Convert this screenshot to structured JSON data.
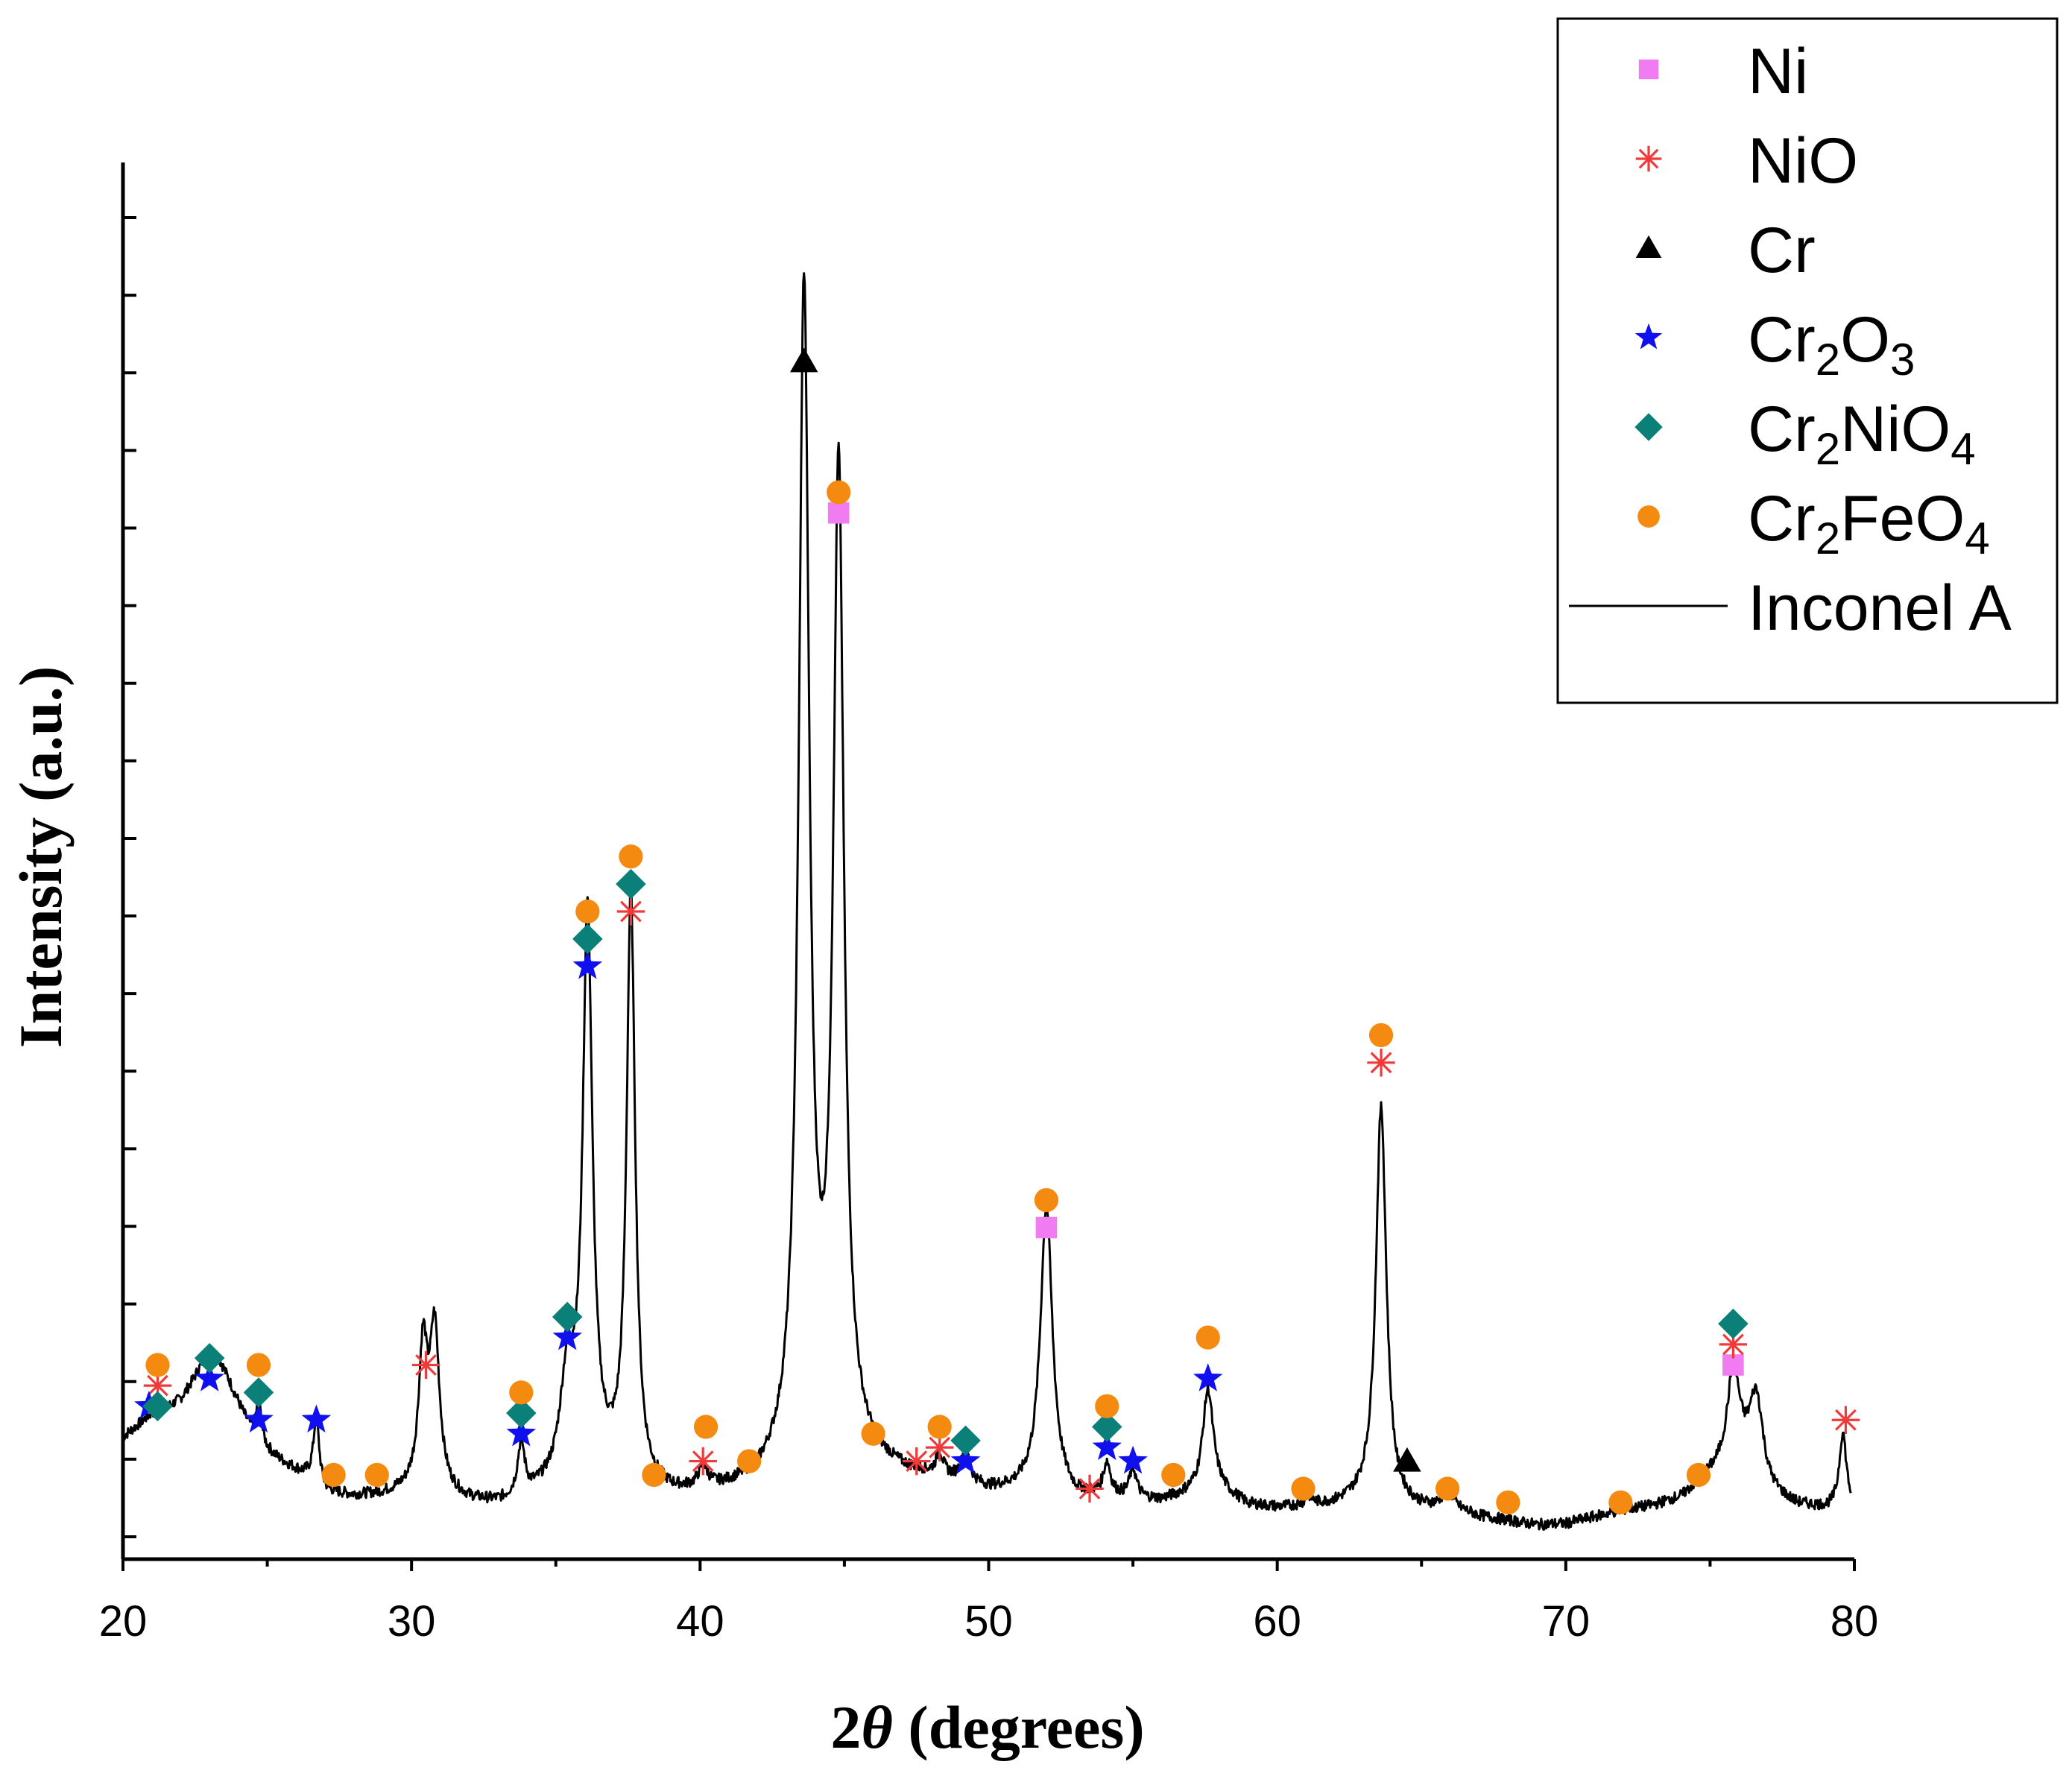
{
  "chart_data": {
    "type": "line",
    "title": "",
    "xlabel_prefix": "2",
    "xlabel_theta": "θ",
    "xlabel_suffix": " (degrees)",
    "ylabel": "Intensity (a.u.)",
    "xlim": [
      20,
      80
    ],
    "ylim": [
      0,
      100
    ],
    "x_ticks": [
      "20",
      "30",
      "40",
      "50",
      "60",
      "70",
      "80"
    ],
    "y_minor_ticks": 18,
    "series_name": "Inconel A",
    "series_color": "#000000",
    "spectrum_baseline": [
      [
        20.0,
        7.0
      ],
      [
        21.0,
        8.5
      ],
      [
        22.0,
        8.8
      ],
      [
        23.0,
        10.2
      ],
      [
        24.0,
        7.8
      ],
      [
        24.6,
        6.0
      ],
      [
        25.5,
        5.0
      ],
      [
        26.5,
        4.0
      ],
      [
        27.0,
        3.0
      ],
      [
        28.0,
        2.8
      ],
      [
        29.0,
        2.9
      ],
      [
        30.0,
        3.2
      ],
      [
        31.0,
        3.0
      ],
      [
        32.0,
        2.4
      ],
      [
        33.0,
        2.2
      ],
      [
        34.0,
        2.6
      ],
      [
        35.0,
        3.4
      ],
      [
        36.0,
        4.8
      ],
      [
        37.0,
        4.0
      ],
      [
        38.0,
        3.2
      ],
      [
        39.0,
        2.8
      ],
      [
        40.0,
        2.9
      ],
      [
        41.0,
        3.2
      ],
      [
        42.0,
        3.6
      ],
      [
        43.0,
        4.8
      ],
      [
        44.0,
        6.5
      ],
      [
        45.0,
        6.0
      ],
      [
        46.0,
        5.0
      ],
      [
        47.0,
        4.4
      ],
      [
        48.0,
        4.1
      ],
      [
        49.0,
        3.8
      ],
      [
        50.0,
        3.2
      ],
      [
        51.0,
        3.2
      ],
      [
        52.0,
        3.4
      ],
      [
        53.0,
        2.6
      ],
      [
        54.0,
        2.8
      ],
      [
        55.0,
        2.6
      ],
      [
        56.0,
        2.5
      ],
      [
        57.0,
        3.0
      ],
      [
        58.0,
        3.2
      ],
      [
        59.0,
        2.2
      ],
      [
        60.0,
        2.0
      ],
      [
        61.0,
        2.1
      ],
      [
        62.0,
        2.2
      ],
      [
        63.0,
        2.5
      ],
      [
        64.0,
        2.0
      ],
      [
        65.0,
        1.9
      ],
      [
        66.0,
        2.0
      ],
      [
        67.0,
        1.4
      ],
      [
        68.0,
        1.1
      ],
      [
        69.0,
        0.8
      ],
      [
        70.0,
        0.9
      ],
      [
        71.0,
        1.4
      ],
      [
        72.0,
        1.9
      ],
      [
        73.0,
        2.2
      ],
      [
        74.0,
        2.8
      ],
      [
        75.0,
        4.4
      ],
      [
        76.0,
        5.5
      ],
      [
        77.0,
        3.0
      ],
      [
        78.0,
        2.2
      ],
      [
        79.0,
        2.0
      ],
      [
        80.0,
        2.0
      ]
    ],
    "spectrum_peaks": [
      {
        "center": 23.2,
        "height": 3.5,
        "width": 0.9
      },
      {
        "center": 24.7,
        "height": 3.0,
        "width": 0.12
      },
      {
        "center": 26.7,
        "height": 4.8,
        "width": 0.12
      },
      {
        "center": 30.4,
        "height": 10.0,
        "width": 0.18
      },
      {
        "center": 30.8,
        "height": 11.5,
        "width": 0.2
      },
      {
        "center": 33.8,
        "height": 3.8,
        "width": 0.15
      },
      {
        "center": 35.4,
        "height": 7.0,
        "width": 0.3
      },
      {
        "center": 36.1,
        "height": 40.0,
        "width": 0.2
      },
      {
        "center": 37.6,
        "height": 42.5,
        "width": 0.18
      },
      {
        "center": 40.1,
        "height": 1.5,
        "width": 0.2
      },
      {
        "center": 43.6,
        "height": 84.0,
        "width": 0.22
      },
      {
        "center": 44.8,
        "height": 70.5,
        "width": 0.22
      },
      {
        "center": 48.3,
        "height": 1.6,
        "width": 0.15
      },
      {
        "center": 49.2,
        "height": 2.4,
        "width": 0.15
      },
      {
        "center": 52.0,
        "height": 20.5,
        "width": 0.25
      },
      {
        "center": 54.1,
        "height": 2.3,
        "width": 0.15
      },
      {
        "center": 55.0,
        "height": 2.1,
        "width": 0.15
      },
      {
        "center": 57.6,
        "height": 7.5,
        "width": 0.22
      },
      {
        "center": 61.1,
        "height": 0.6,
        "width": 0.15
      },
      {
        "center": 63.6,
        "height": 29.0,
        "width": 0.22
      },
      {
        "center": 65.9,
        "height": 1.2,
        "width": 0.2
      },
      {
        "center": 75.8,
        "height": 6.5,
        "width": 0.25
      },
      {
        "center": 76.6,
        "height": 6.2,
        "width": 0.3
      },
      {
        "center": 79.6,
        "height": 5.5,
        "width": 0.15
      }
    ],
    "legend": [
      {
        "name": "Ni",
        "marker": "square",
        "color": "#f17bf1"
      },
      {
        "name": "NiO",
        "marker": "asterisk",
        "color": "#f03a3a"
      },
      {
        "name": "Cr",
        "marker": "triangle",
        "color": "#000000"
      },
      {
        "name": "Cr",
        "sub1": "2",
        "mid": "O",
        "sub2": "3",
        "marker": "star",
        "color": "#1010ee"
      },
      {
        "name": "Cr",
        "sub1": "2",
        "mid": "NiO",
        "sub2": "4",
        "marker": "diamond",
        "color": "#0b8078"
      },
      {
        "name": "Cr",
        "sub1": "2",
        "mid": "FeO",
        "sub2": "4",
        "marker": "circle",
        "color": "#f58a10"
      },
      {
        "name": "Inconel A",
        "marker": "line",
        "color": "#000000"
      }
    ],
    "phase_markers": {
      "Ni": [
        [
          44.8,
          74.5
        ],
        [
          52.0,
          22.5
        ],
        [
          75.8,
          12.5
        ]
      ],
      "NiO": [
        [
          21.2,
          11.0
        ],
        [
          30.5,
          12.5
        ],
        [
          37.6,
          45.5
        ],
        [
          40.1,
          5.5
        ],
        [
          47.5,
          5.5
        ],
        [
          48.3,
          6.5
        ],
        [
          53.5,
          3.5
        ],
        [
          63.6,
          34.5
        ],
        [
          75.8,
          14.0
        ],
        [
          79.7,
          8.5
        ]
      ],
      "Cr": [
        [
          43.6,
          85.5
        ],
        [
          64.5,
          5.5
        ]
      ],
      "Cr2O3": [
        [
          20.9,
          9.5
        ],
        [
          23.0,
          11.5
        ],
        [
          24.7,
          8.5
        ],
        [
          26.7,
          8.5
        ],
        [
          33.8,
          7.5
        ],
        [
          35.4,
          14.5
        ],
        [
          36.1,
          41.5
        ],
        [
          49.2,
          5.5
        ],
        [
          54.1,
          6.5
        ],
        [
          55.0,
          5.5
        ],
        [
          57.6,
          11.5
        ]
      ],
      "Cr2NiO4": [
        [
          21.2,
          9.5
        ],
        [
          23.0,
          13.0
        ],
        [
          24.7,
          10.5
        ],
        [
          33.8,
          9.0
        ],
        [
          35.4,
          16.0
        ],
        [
          36.1,
          43.5
        ],
        [
          37.6,
          47.5
        ],
        [
          49.2,
          7.0
        ],
        [
          54.1,
          8.0
        ],
        [
          75.8,
          15.5
        ]
      ],
      "Cr2FeO4": [
        [
          21.2,
          12.5
        ],
        [
          24.7,
          12.5
        ],
        [
          27.3,
          4.5
        ],
        [
          28.8,
          4.5
        ],
        [
          33.8,
          10.5
        ],
        [
          36.1,
          45.5
        ],
        [
          37.6,
          49.5
        ],
        [
          38.4,
          4.5
        ],
        [
          40.2,
          8.0
        ],
        [
          41.7,
          5.5
        ],
        [
          44.8,
          76.0
        ],
        [
          46.0,
          7.5
        ],
        [
          48.3,
          8.0
        ],
        [
          52.0,
          24.5
        ],
        [
          54.1,
          9.5
        ],
        [
          56.4,
          4.5
        ],
        [
          57.6,
          14.5
        ],
        [
          60.9,
          3.5
        ],
        [
          63.6,
          36.5
        ],
        [
          65.9,
          3.5
        ],
        [
          68.0,
          2.5
        ],
        [
          71.9,
          2.5
        ],
        [
          74.6,
          4.5
        ]
      ]
    }
  }
}
